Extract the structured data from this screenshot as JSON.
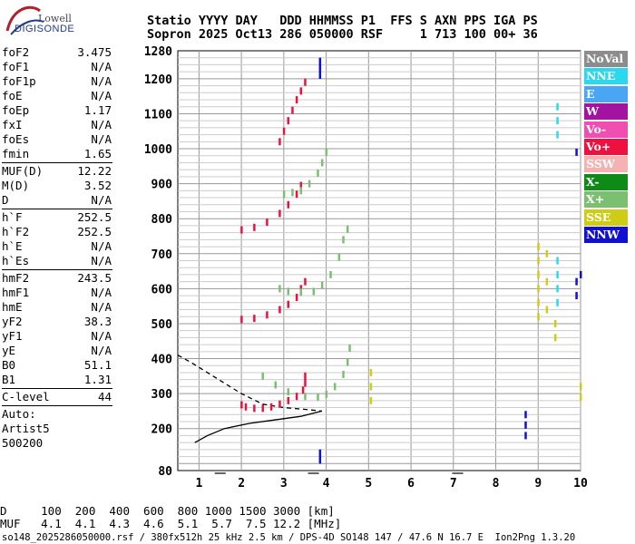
{
  "logo": {
    "line1": "Lowell",
    "line2": "DIGISONDE"
  },
  "header": {
    "row1": "Statio YYYY DAY   DDD HHMMSS P1  FFS S AXN PPS IGA PS",
    "row2": "Sopron 2025 Oct13 286 050000 RSF     1 713 100 00+ 36"
  },
  "params": [
    {
      "k": "foF2",
      "v": "3.475"
    },
    {
      "k": "foF1",
      "v": "N/A"
    },
    {
      "k": "foF1p",
      "v": "N/A"
    },
    {
      "k": "foE",
      "v": "N/A"
    },
    {
      "k": "foEp",
      "v": "1.17"
    },
    {
      "k": "fxI",
      "v": "N/A"
    },
    {
      "k": "foEs",
      "v": "N/A"
    },
    {
      "k": "fmin",
      "v": "1.65"
    },
    {
      "sep": true
    },
    {
      "k": "MUF(D)",
      "v": "12.22"
    },
    {
      "k": "M(D)",
      "v": "3.52"
    },
    {
      "k": "D",
      "v": "N/A"
    },
    {
      "sep": true
    },
    {
      "k": "h`F",
      "v": "252.5"
    },
    {
      "k": "h`F2",
      "v": "252.5"
    },
    {
      "k": "h`E",
      "v": "N/A"
    },
    {
      "k": "h`Es",
      "v": "N/A"
    },
    {
      "sep": true
    },
    {
      "k": "hmF2",
      "v": "243.5"
    },
    {
      "k": "hmF1",
      "v": "N/A"
    },
    {
      "k": "hmE",
      "v": "N/A"
    },
    {
      "k": "yF2",
      "v": "38.3"
    },
    {
      "k": "yF1",
      "v": "N/A"
    },
    {
      "k": "yE",
      "v": "N/A"
    },
    {
      "k": "B0",
      "v": "51.1"
    },
    {
      "k": "B1",
      "v": "1.31"
    },
    {
      "sep": true
    },
    {
      "k": "C-level",
      "v": "44"
    },
    {
      "sep": true
    },
    {
      "free": "Auto:"
    },
    {
      "free": "Artist5"
    },
    {
      "free": "500200"
    }
  ],
  "legend": [
    {
      "label": "NoVal",
      "color": "#8c8c8c"
    },
    {
      "label": "NNE",
      "color": "#2bd8ee"
    },
    {
      "label": "E",
      "color": "#4aa6f4"
    },
    {
      "label": "W",
      "color": "#a2139f"
    },
    {
      "label": "Vo-",
      "color": "#ee4fb0"
    },
    {
      "label": "Vo+",
      "color": "#f01040"
    },
    {
      "label": "SSW",
      "color": "#f5b2b2"
    },
    {
      "label": "X-",
      "color": "#0e8a16"
    },
    {
      "label": "X+",
      "color": "#7ac070"
    },
    {
      "label": "SSE",
      "color": "#cfcc15"
    },
    {
      "label": "NNW",
      "color": "#1010d0"
    }
  ],
  "bottom": {
    "row1": "D     100  200  400  600  800 1000 1500 3000 [km]",
    "row2": "MUF   4.1  4.1  4.3  4.6  5.1  5.7  7.5 12.2 [MHz]"
  },
  "footer": "so148_2025286050000.rsf / 380fx512h 25 kHz 2.5 km / DPS-4D SO148 147 / 47.6 N 16.7 E  Ion2Png 1.3.20",
  "chart_data": {
    "type": "scatter",
    "xlabel": "",
    "ylabel": "",
    "xlim": [
      0.5,
      10.0
    ],
    "ylim": [
      80,
      1280
    ],
    "xticks": [
      1,
      2,
      3,
      4,
      5,
      6,
      7,
      8,
      9,
      10
    ],
    "yticks": [
      80,
      200,
      300,
      400,
      500,
      600,
      700,
      800,
      900,
      1000,
      1100,
      1200,
      1280
    ],
    "grid": true,
    "series": [
      {
        "color": "#f01040",
        "points": [
          [
            2.0,
            268
          ],
          [
            2.1,
            262
          ],
          [
            2.3,
            258
          ],
          [
            2.5,
            258
          ],
          [
            2.7,
            262
          ],
          [
            2.9,
            270
          ],
          [
            3.1,
            280
          ],
          [
            3.3,
            292
          ],
          [
            3.45,
            310
          ],
          [
            3.5,
            330
          ],
          [
            3.5,
            350
          ]
        ]
      },
      {
        "color": "#f01040",
        "points": [
          [
            2.0,
            512
          ],
          [
            2.3,
            515
          ],
          [
            2.6,
            525
          ],
          [
            2.9,
            540
          ],
          [
            3.1,
            555
          ],
          [
            3.3,
            575
          ],
          [
            3.4,
            600
          ],
          [
            3.5,
            620
          ]
        ]
      },
      {
        "color": "#f01040",
        "points": [
          [
            2.0,
            768
          ],
          [
            2.3,
            775
          ],
          [
            2.6,
            790
          ],
          [
            2.9,
            815
          ],
          [
            3.1,
            840
          ],
          [
            3.3,
            870
          ],
          [
            3.4,
            895
          ]
        ]
      },
      {
        "color": "#f01040",
        "points": [
          [
            2.9,
            1020
          ],
          [
            3.0,
            1050
          ],
          [
            3.1,
            1080
          ],
          [
            3.2,
            1110
          ],
          [
            3.3,
            1140
          ],
          [
            3.4,
            1165
          ],
          [
            3.5,
            1190
          ]
        ]
      },
      {
        "color": "#7ac070",
        "points": [
          [
            2.5,
            350
          ],
          [
            2.8,
            325
          ],
          [
            3.1,
            305
          ],
          [
            3.5,
            292
          ],
          [
            3.8,
            290
          ],
          [
            4.0,
            298
          ],
          [
            4.2,
            320
          ],
          [
            4.4,
            355
          ],
          [
            4.5,
            390
          ],
          [
            4.55,
            430
          ]
        ]
      },
      {
        "color": "#7ac070",
        "points": [
          [
            2.9,
            600
          ],
          [
            3.1,
            592
          ],
          [
            3.4,
            590
          ],
          [
            3.7,
            592
          ],
          [
            3.9,
            610
          ],
          [
            4.1,
            640
          ],
          [
            4.3,
            690
          ],
          [
            4.4,
            740
          ],
          [
            4.5,
            770
          ]
        ]
      },
      {
        "color": "#7ac070",
        "points": [
          [
            3.0,
            870
          ],
          [
            3.2,
            875
          ],
          [
            3.4,
            880
          ],
          [
            3.6,
            900
          ],
          [
            3.8,
            930
          ],
          [
            3.9,
            960
          ],
          [
            4.0,
            990
          ]
        ]
      },
      {
        "color": "#cfcc15",
        "points": [
          [
            5.05,
            360
          ],
          [
            5.05,
            320
          ],
          [
            5.05,
            280
          ],
          [
            9.0,
            720
          ],
          [
            9.0,
            680
          ],
          [
            9.0,
            640
          ],
          [
            9.0,
            600
          ],
          [
            9.0,
            560
          ],
          [
            9.0,
            520
          ],
          [
            9.2,
            700
          ],
          [
            9.2,
            620
          ],
          [
            9.2,
            540
          ],
          [
            9.4,
            500
          ],
          [
            9.4,
            460
          ],
          [
            10.0,
            320
          ],
          [
            10.0,
            290
          ]
        ]
      },
      {
        "color": "#1010d0",
        "points": [
          [
            3.85,
            1250
          ],
          [
            3.85,
            1230
          ],
          [
            3.85,
            1210
          ],
          [
            3.85,
            130
          ],
          [
            3.85,
            110
          ],
          [
            8.7,
            240
          ],
          [
            8.7,
            210
          ],
          [
            8.7,
            180
          ],
          [
            9.9,
            620
          ],
          [
            9.9,
            580
          ],
          [
            9.9,
            990
          ],
          [
            10.0,
            640
          ]
        ]
      },
      {
        "color": "#2bd8ee",
        "points": [
          [
            9.45,
            1120
          ],
          [
            9.45,
            1080
          ],
          [
            9.45,
            1040
          ],
          [
            9.45,
            680
          ],
          [
            9.45,
            640
          ],
          [
            9.45,
            600
          ],
          [
            9.45,
            560
          ]
        ]
      }
    ],
    "profile": [
      [
        0.5,
        410
      ],
      [
        0.8,
        390
      ],
      [
        1.2,
        360
      ],
      [
        1.6,
        330
      ],
      [
        2.0,
        300
      ],
      [
        2.5,
        270
      ],
      [
        3.0,
        260
      ],
      [
        3.5,
        255
      ],
      [
        3.9,
        250
      ],
      [
        3.4,
        235
      ],
      [
        2.8,
        225
      ],
      [
        2.2,
        215
      ],
      [
        1.6,
        200
      ],
      [
        1.2,
        180
      ],
      [
        0.9,
        160
      ]
    ],
    "bottom_ticks": [
      {
        "x": 1.5,
        "y": 80
      },
      {
        "x": 3.7,
        "y": 80
      },
      {
        "x": 7.1,
        "y": 80
      }
    ]
  }
}
